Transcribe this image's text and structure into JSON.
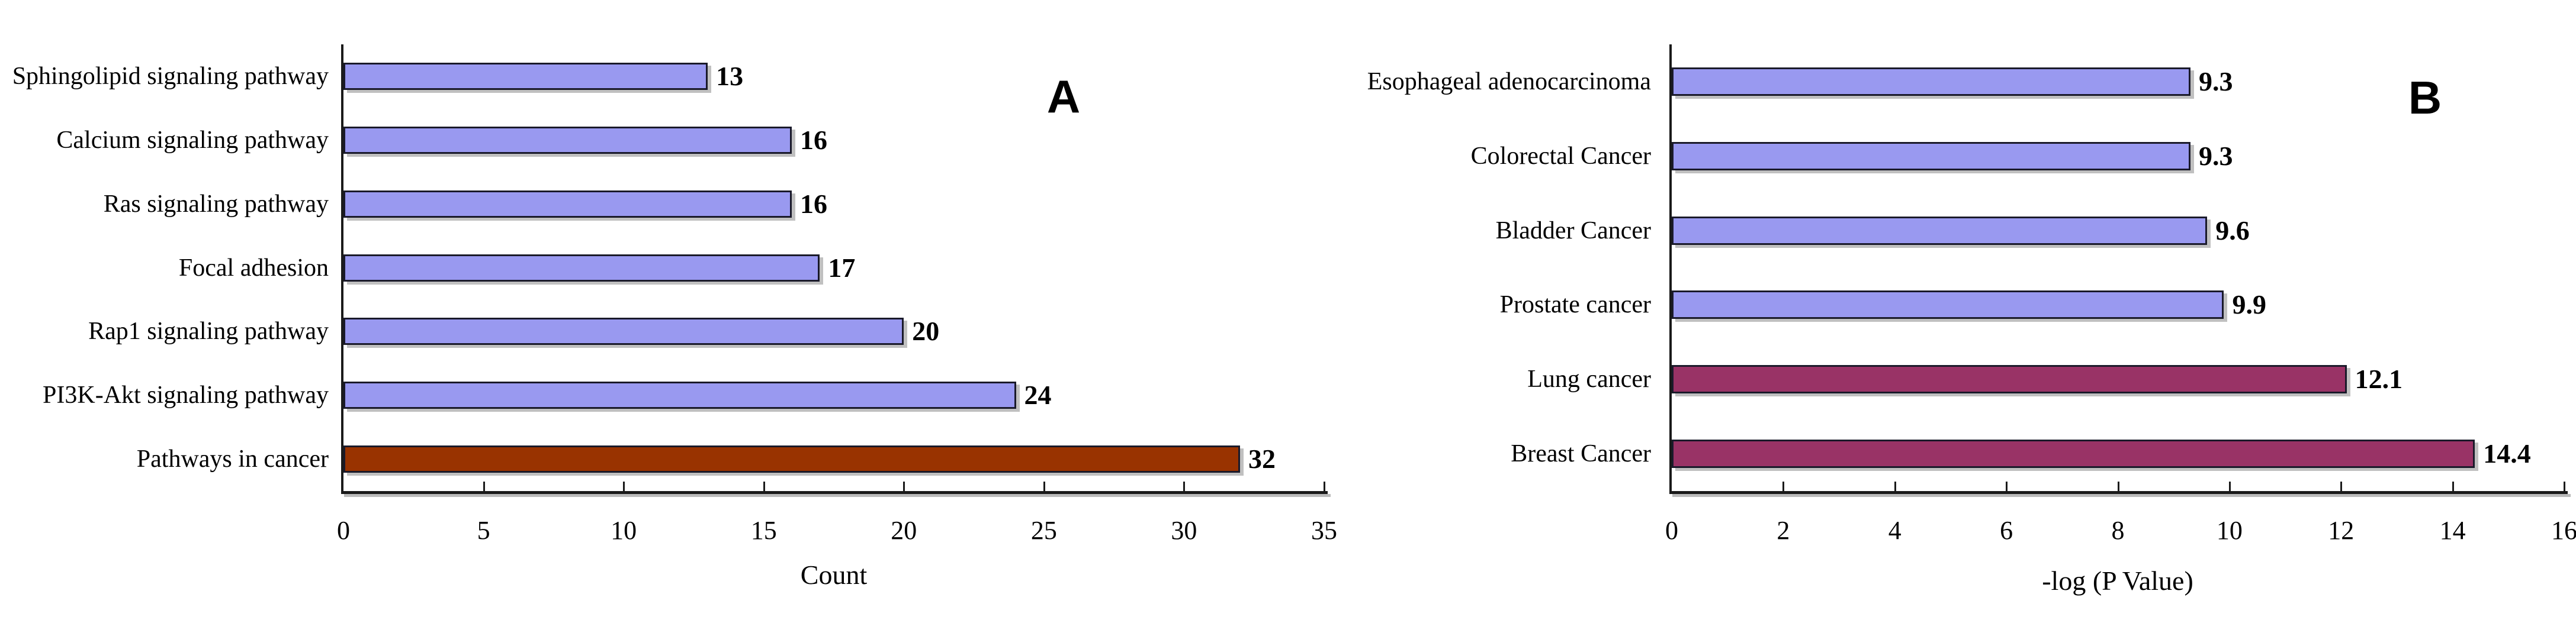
{
  "figure": {
    "background": "#ffffff"
  },
  "chart_data": [
    {
      "type": "bar",
      "orientation": "horizontal",
      "panel_label": "A",
      "xlabel": "Count",
      "xlim": [
        0,
        35
      ],
      "xticks": [
        0,
        5,
        10,
        15,
        20,
        25,
        30,
        35
      ],
      "grid": false,
      "legend": false,
      "categories": [
        "Sphingolipid signaling pathway",
        "Calcium signaling pathway",
        "Ras signaling pathway",
        "Focal adhesion",
        "Rap1 signaling pathway",
        "PI3K-Akt signaling pathway",
        "Pathways in cancer"
      ],
      "values": [
        13,
        16,
        16,
        17,
        20,
        24,
        32
      ],
      "value_labels": [
        "13",
        "16",
        "16",
        "17",
        "20",
        "24",
        "32"
      ],
      "bar_colors": [
        "#9999f0",
        "#9999f0",
        "#9999f0",
        "#9999f0",
        "#9999f0",
        "#9999f0",
        "#993300"
      ]
    },
    {
      "type": "bar",
      "orientation": "horizontal",
      "panel_label": "B",
      "xlabel": "-log (P Value)",
      "xlim": [
        0,
        16
      ],
      "xticks": [
        0,
        2,
        4,
        6,
        8,
        10,
        12,
        14,
        16
      ],
      "grid": false,
      "legend": false,
      "categories": [
        "Esophageal adenocarcinoma",
        "Colorectal Cancer",
        "Bladder Cancer",
        "Prostate cancer",
        "Lung cancer",
        "Breast Cancer"
      ],
      "values": [
        9.3,
        9.3,
        9.6,
        9.9,
        12.1,
        14.4
      ],
      "value_labels": [
        "9.3",
        "9.3",
        "9.6",
        "9.9",
        "12.1",
        "14.4"
      ],
      "bar_colors": [
        "#9999f0",
        "#9999f0",
        "#9999f0",
        "#9999f0",
        "#993366",
        "#993366"
      ]
    }
  ],
  "colors": {
    "bar_fill_default": "#9999f0",
    "bar_fill_highlight_a": "#993300",
    "bar_fill_highlight_b": "#993366",
    "bar_border": "#1a1a2a",
    "axis": "#1a1a1a",
    "text": "#000000"
  }
}
